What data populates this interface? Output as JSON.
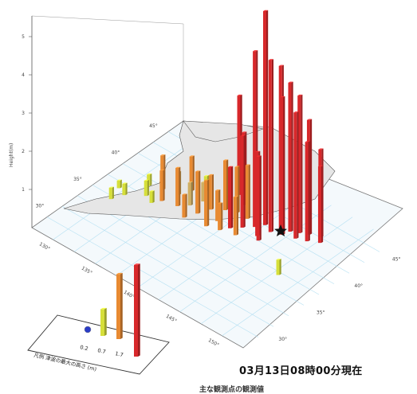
{
  "chart_data": {
    "type": "bar3d",
    "ylabel": "Height(m)",
    "z_ticks": [
      "1",
      "2",
      "3",
      "4",
      "5"
    ],
    "map_ticks_near": [
      "130°",
      "135°",
      "140°",
      "145°",
      "150°"
    ],
    "map_ticks_left": [
      "45°",
      "40°",
      "35°",
      "30°"
    ],
    "map_ticks_far": [
      "45°",
      "40°",
      "35°",
      "30°"
    ],
    "legend_title": "凡例 津波の最大の高さ (m)",
    "legend_scale": [
      "0.2",
      "0.7",
      "1.7"
    ],
    "colors": {
      "red": "#d8282b",
      "orange": "#e88a32",
      "tan": "#cfae62",
      "yellow": "#d6df3a",
      "blue": "#2a3cc6",
      "grid": "#b5e0f2",
      "land": "#e6e6e6"
    },
    "bars": [
      {
        "id": "b01",
        "height": 5.6,
        "color": "red"
      },
      {
        "id": "b02",
        "height": 4.6,
        "color": "red"
      },
      {
        "id": "b03",
        "height": 4.5,
        "color": "red"
      },
      {
        "id": "b04",
        "height": 4.3,
        "color": "red"
      },
      {
        "id": "b05",
        "height": 3.9,
        "color": "red"
      },
      {
        "id": "b06",
        "height": 3.6,
        "color": "red"
      },
      {
        "id": "b07",
        "height": 3.6,
        "color": "red"
      },
      {
        "id": "b08",
        "height": 3.3,
        "color": "red"
      },
      {
        "id": "b09",
        "height": 3.0,
        "color": "red"
      },
      {
        "id": "b10",
        "height": 2.6,
        "color": "red"
      },
      {
        "id": "b11",
        "height": 2.3,
        "color": "red"
      },
      {
        "id": "b12",
        "height": 2.0,
        "color": "red"
      },
      {
        "id": "b13",
        "height": 2.2,
        "color": "red"
      },
      {
        "id": "b14",
        "height": 2.4,
        "color": "red"
      },
      {
        "id": "b15",
        "height": 1.6,
        "color": "red"
      },
      {
        "id": "b16",
        "height": 2.6,
        "color": "red"
      },
      {
        "id": "b17",
        "height": 1.1,
        "color": "orange"
      },
      {
        "id": "b18",
        "height": 0.9,
        "color": "orange"
      },
      {
        "id": "b19",
        "height": 1.3,
        "color": "orange"
      },
      {
        "id": "b20",
        "height": 0.6,
        "color": "tan"
      },
      {
        "id": "b21",
        "height": 0.8,
        "color": "orange"
      },
      {
        "id": "b22",
        "height": 1.2,
        "color": "orange"
      },
      {
        "id": "b23",
        "height": 0.5,
        "color": "tan"
      },
      {
        "id": "b24",
        "height": 1.0,
        "color": "orange"
      },
      {
        "id": "b25",
        "height": 0.7,
        "color": "orange"
      },
      {
        "id": "b26",
        "height": 0.9,
        "color": "orange"
      },
      {
        "id": "b27",
        "height": 1.4,
        "color": "orange"
      },
      {
        "id": "b28",
        "height": 0.6,
        "color": "tan"
      },
      {
        "id": "b29",
        "height": 1.0,
        "color": "orange"
      },
      {
        "id": "b30",
        "height": 0.8,
        "color": "orange"
      },
      {
        "id": "b31",
        "height": 0.4,
        "color": "yellow"
      },
      {
        "id": "b32",
        "height": 0.3,
        "color": "yellow"
      },
      {
        "id": "b33",
        "height": 0.3,
        "color": "yellow"
      },
      {
        "id": "b34",
        "height": 0.3,
        "color": "yellow"
      },
      {
        "id": "b35",
        "height": 0.3,
        "color": "yellow"
      },
      {
        "id": "b36",
        "height": 0.2,
        "color": "yellow"
      },
      {
        "id": "b37",
        "height": 0.4,
        "color": "yellow"
      },
      {
        "id": "b38",
        "height": 1.2,
        "color": "orange"
      },
      {
        "id": "b39",
        "height": 0.6,
        "color": "orange"
      },
      {
        "id": "b40",
        "height": 1.9,
        "color": "red"
      },
      {
        "id": "b41",
        "height": 0.9,
        "color": "orange"
      },
      {
        "id": "b42",
        "height": 2.2,
        "color": "red"
      },
      {
        "id": "b43",
        "height": 0.4,
        "color": "yellow"
      }
    ],
    "legend_bars": [
      {
        "id": "l1",
        "height": 0.2,
        "color": "blue"
      },
      {
        "id": "l2",
        "height": 0.7,
        "color": "yellow"
      },
      {
        "id": "l3",
        "height": 1.7,
        "color": "orange"
      },
      {
        "id": "l4",
        "height": 2.4,
        "color": "red"
      }
    ]
  },
  "timestamp": "03月13日08時00分現在",
  "footer": "主な観測点の観測値"
}
